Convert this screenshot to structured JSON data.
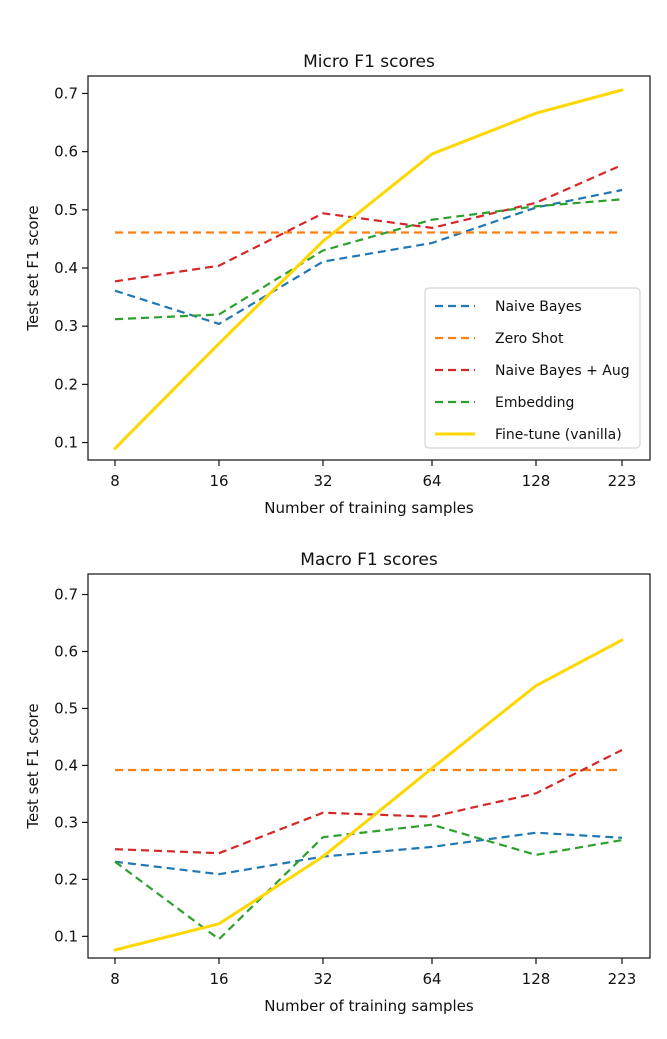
{
  "chart_data": [
    {
      "type": "line",
      "title": "Micro F1 scores",
      "xlabel": "Number of training samples",
      "ylabel": "Test set F1 score",
      "categories": [
        "8",
        "16",
        "32",
        "64",
        "128",
        "223"
      ],
      "ylim": [
        0.07,
        0.73
      ],
      "yticks": [
        "0.1",
        "0.2",
        "0.3",
        "0.4",
        "0.5",
        "0.6",
        "0.7"
      ],
      "grid": false,
      "legend": "bottom-right",
      "series": [
        {
          "name": "Naive Bayes",
          "color": "#1f77b4",
          "style": "dashed",
          "values": [
            0.361,
            0.304,
            0.411,
            0.443,
            0.504,
            0.534
          ]
        },
        {
          "name": "Zero Shot",
          "color": "#ff7f0e",
          "style": "dashed",
          "values": [
            0.461,
            0.461,
            0.461,
            0.461,
            0.461,
            0.461
          ]
        },
        {
          "name": "Naive Bayes + Aug",
          "color": "#d62728",
          "style": "dashed",
          "values": [
            0.377,
            0.404,
            0.494,
            0.469,
            0.512,
            0.577
          ]
        },
        {
          "name": "Embedding",
          "color": "#2ca02c",
          "style": "dashed",
          "values": [
            0.312,
            0.32,
            0.43,
            0.483,
            0.506,
            0.518
          ]
        },
        {
          "name": "Fine-tune (vanilla)",
          "color": "#ffd700",
          "style": "solid",
          "values": [
            0.09,
            0.27,
            0.446,
            0.596,
            0.666,
            0.706
          ]
        }
      ]
    },
    {
      "type": "line",
      "title": "Macro F1 scores",
      "xlabel": "Number of training samples",
      "ylabel": "Test set F1 score",
      "categories": [
        "8",
        "16",
        "32",
        "64",
        "128",
        "223"
      ],
      "ylim": [
        0.062,
        0.736
      ],
      "yticks": [
        "0.1",
        "0.2",
        "0.3",
        "0.4",
        "0.5",
        "0.6",
        "0.7"
      ],
      "grid": false,
      "legend": "none",
      "series": [
        {
          "name": "Naive Bayes",
          "color": "#1f77b4",
          "style": "dashed",
          "values": [
            0.231,
            0.209,
            0.24,
            0.257,
            0.282,
            0.273
          ]
        },
        {
          "name": "Zero Shot",
          "color": "#ff7f0e",
          "style": "dashed",
          "values": [
            0.392,
            0.392,
            0.392,
            0.392,
            0.392,
            0.392
          ]
        },
        {
          "name": "Naive Bayes + Aug",
          "color": "#d62728",
          "style": "dashed",
          "values": [
            0.253,
            0.246,
            0.317,
            0.31,
            0.351,
            0.427
          ]
        },
        {
          "name": "Embedding",
          "color": "#2ca02c",
          "style": "dashed",
          "values": [
            0.231,
            0.095,
            0.274,
            0.296,
            0.243,
            0.269
          ]
        },
        {
          "name": "Fine-tune (vanilla)",
          "color": "#ffd700",
          "style": "solid",
          "values": [
            0.076,
            0.122,
            0.24,
            0.395,
            0.54,
            0.62
          ]
        }
      ]
    }
  ]
}
